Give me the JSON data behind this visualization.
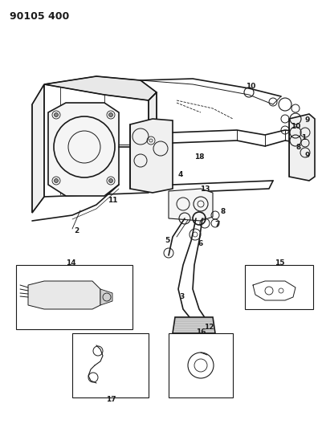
{
  "title": "90105 400",
  "bg": "#ffffff",
  "lc": "#1a1a1a",
  "fig_w": 4.01,
  "fig_h": 5.33,
  "dpi": 100
}
